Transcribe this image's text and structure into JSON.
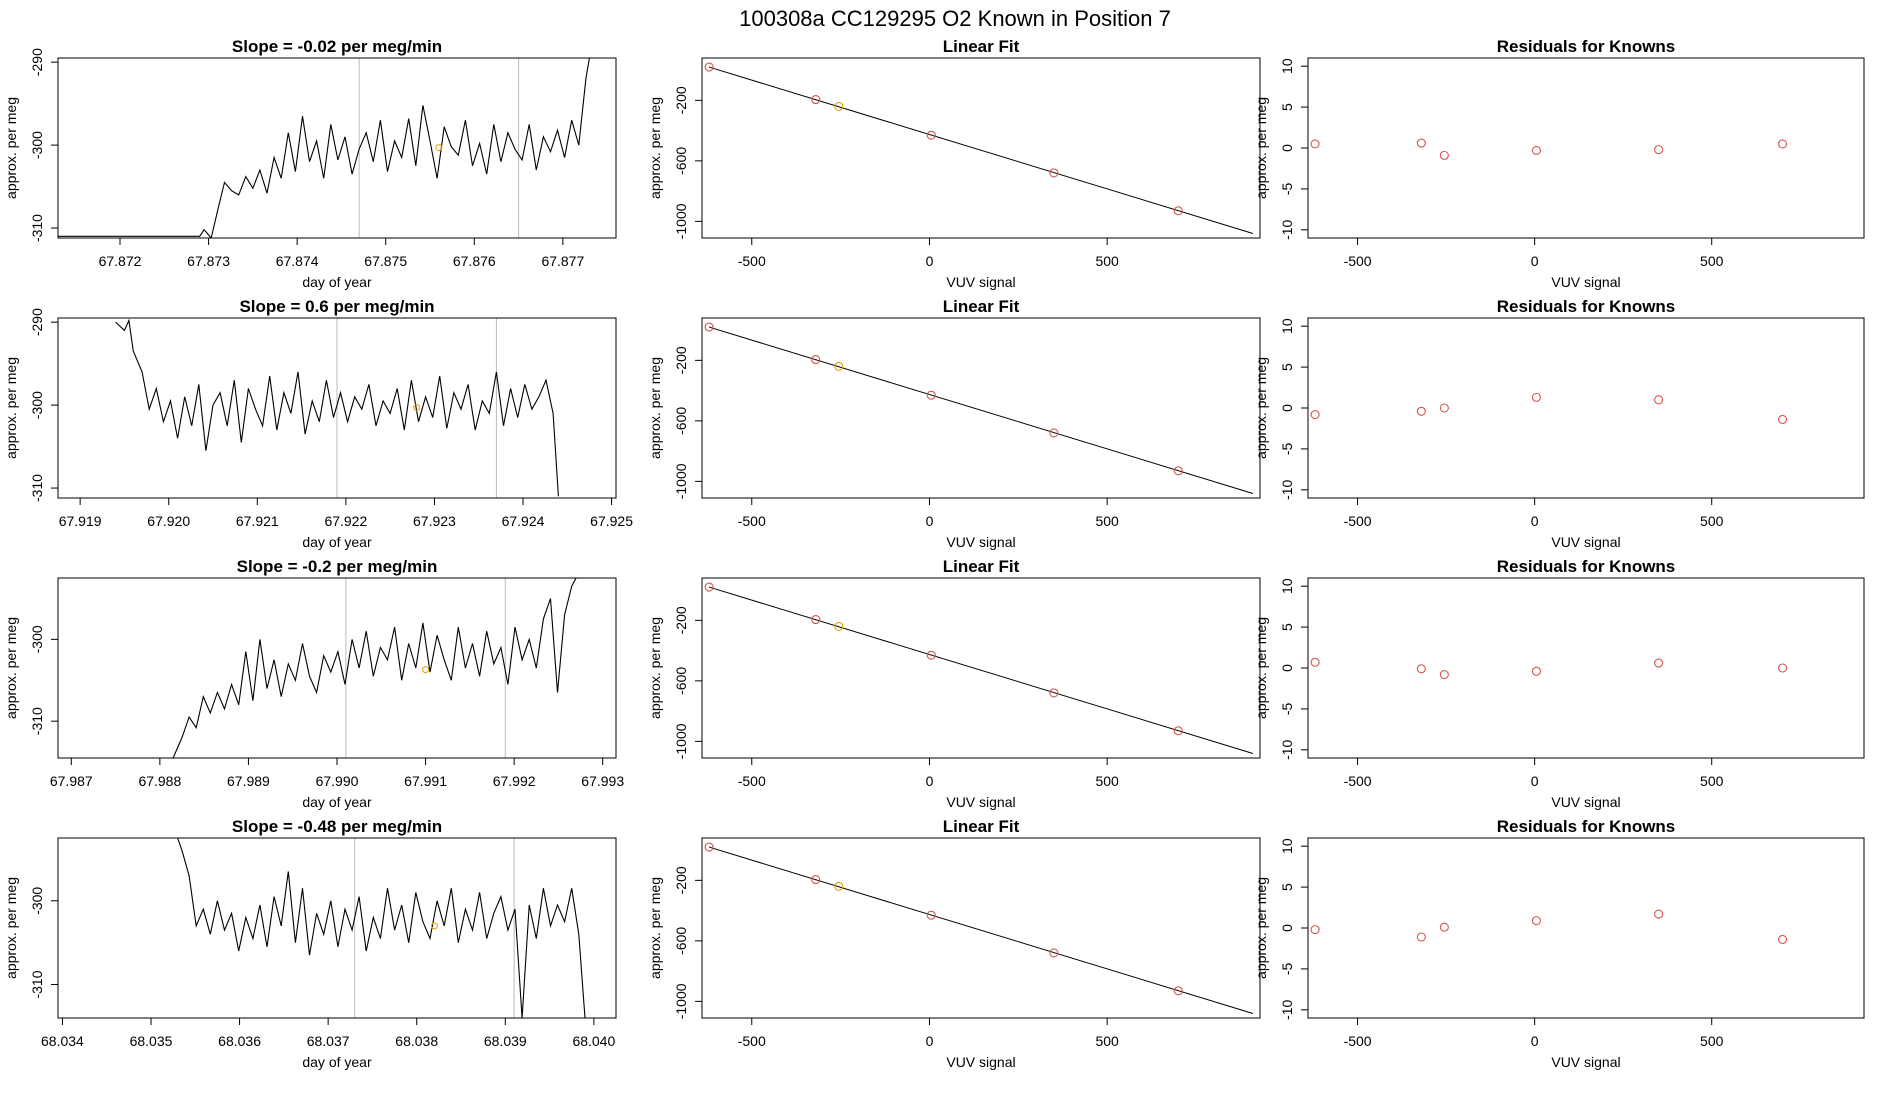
{
  "header": {
    "title": "100308a      CC129295   O2 Known in Position  7"
  },
  "colors": {
    "line": "#000000",
    "point": "#d9534f",
    "highlight": "#e69f00",
    "vline": "#bbbbbb",
    "frame": "#000000"
  },
  "chart_data": [
    {
      "type": "line",
      "panel": "timeseries-1",
      "title": "Slope =  -0.02  per meg/min",
      "xlabel": "day of year",
      "ylabel": "approx. per meg",
      "xlim": [
        67.8713,
        67.8776
      ],
      "ylim": [
        -311.2,
        -289.5
      ],
      "xticks": [
        67.872,
        67.873,
        67.874,
        67.875,
        67.876,
        67.877
      ],
      "xtick_labels": [
        "67.872",
        "67.873",
        "67.874",
        "67.875",
        "67.876",
        "67.877"
      ],
      "yticks": [
        -290,
        -300,
        -310
      ],
      "ytick_labels": [
        "-290",
        "-300",
        "-310"
      ],
      "vlines": [
        67.8747,
        67.8765
      ],
      "highlight": {
        "x": 67.8756,
        "y": -300.3
      },
      "x": [
        67.8713,
        67.8729,
        67.87295,
        67.87303,
        67.8731,
        67.87318,
        67.87326,
        67.87334,
        67.87342,
        67.8735,
        67.87358,
        67.87366,
        67.87374,
        67.87382,
        67.8739,
        67.87398,
        67.87406,
        67.87414,
        67.87422,
        67.8743,
        67.87438,
        67.87446,
        67.87454,
        67.87462,
        67.8747,
        67.87478,
        67.87486,
        67.87494,
        67.87502,
        67.8751,
        67.87518,
        67.87526,
        67.87534,
        67.87542,
        67.8755,
        67.87558,
        67.87566,
        67.87574,
        67.87582,
        67.8759,
        67.87598,
        67.87606,
        67.87614,
        67.87622,
        67.8763,
        67.87638,
        67.87646,
        67.87654,
        67.87662,
        67.8767,
        67.87678,
        67.87686,
        67.87694,
        67.87702,
        67.8771,
        67.87718,
        67.87726,
        67.8773
      ],
      "y": [
        -311.0,
        -311.0,
        -310.2,
        -311.2,
        -308.0,
        -304.5,
        -305.5,
        -306.0,
        -303.8,
        -305.2,
        -303.0,
        -305.8,
        -301.5,
        -304.0,
        -298.5,
        -303.2,
        -296.5,
        -302.0,
        -299.5,
        -304.0,
        -297.5,
        -301.8,
        -299.0,
        -303.5,
        -300.5,
        -298.5,
        -302.0,
        -297.0,
        -303.2,
        -299.5,
        -301.5,
        -296.8,
        -302.5,
        -295.2,
        -299.5,
        -304.0,
        -297.8,
        -300.2,
        -301.2,
        -297.0,
        -302.5,
        -299.8,
        -303.5,
        -297.5,
        -302.0,
        -298.5,
        -300.5,
        -301.8,
        -297.5,
        -303.0,
        -299.0,
        -300.8,
        -298.2,
        -301.5,
        -297.0,
        -300.0,
        -292.0,
        -289.5
      ]
    },
    {
      "type": "scatter",
      "panel": "linear-fit-1",
      "title": "Linear Fit",
      "xlabel": "VUV signal",
      "ylabel": "approx. per meg",
      "xlim": [
        -640,
        930
      ],
      "ylim": [
        -1110,
        80
      ],
      "xticks": [
        -500,
        0,
        500
      ],
      "xtick_labels": [
        "-500",
        "0",
        "500"
      ],
      "yticks": [
        -200,
        -600,
        -1000
      ],
      "ytick_labels": [
        "-200",
        "-600",
        "-1000"
      ],
      "fit_line": [
        [
          -620,
          20
        ],
        [
          910,
          -1080
        ]
      ],
      "x": [
        -620,
        -320,
        -255,
        5,
        350,
        700
      ],
      "y": [
        20,
        -195,
        -240,
        -430,
        -680,
        -930
      ],
      "highlight_index": 2
    },
    {
      "type": "scatter",
      "panel": "residuals-1",
      "title": "Residuals for Knowns",
      "xlabel": "VUV signal",
      "ylabel": "approx. per meg",
      "xlim": [
        -640,
        930
      ],
      "ylim": [
        -11,
        11
      ],
      "xticks": [
        -500,
        0,
        500
      ],
      "xtick_labels": [
        "-500",
        "0",
        "500"
      ],
      "yticks": [
        10,
        5,
        0,
        -5,
        -10
      ],
      "ytick_labels": [
        "10",
        "5",
        "0",
        "-5",
        "-10"
      ],
      "x": [
        -620,
        -320,
        -255,
        5,
        350,
        700
      ],
      "y": [
        0.5,
        0.6,
        -0.9,
        -0.3,
        -0.2,
        0.5
      ]
    },
    {
      "type": "line",
      "panel": "timeseries-2",
      "title": "Slope =  0.6  per meg/min",
      "xlabel": "day of year",
      "ylabel": "approx. per meg",
      "xlim": [
        67.91875,
        67.92505
      ],
      "ylim": [
        -311.2,
        -289.5
      ],
      "xticks": [
        67.919,
        67.92,
        67.921,
        67.922,
        67.923,
        67.924,
        67.925
      ],
      "xtick_labels": [
        "67.919",
        "67.920",
        "67.921",
        "67.922",
        "67.923",
        "67.924",
        "67.925"
      ],
      "yticks": [
        -290,
        -300,
        -310
      ],
      "ytick_labels": [
        "-290",
        "-300",
        "-310"
      ],
      "vlines": [
        67.9219,
        67.9237
      ],
      "highlight": {
        "x": 67.9228,
        "y": -300.3
      },
      "x": [
        67.9194,
        67.9195,
        67.91955,
        67.9196,
        67.9197,
        67.91978,
        67.91986,
        67.91994,
        67.92002,
        67.9201,
        67.92018,
        67.92026,
        67.92034,
        67.92042,
        67.9205,
        67.92058,
        67.92066,
        67.92074,
        67.92082,
        67.9209,
        67.92098,
        67.92106,
        67.92114,
        67.92122,
        67.9213,
        67.92138,
        67.92146,
        67.92154,
        67.92162,
        67.9217,
        67.92178,
        67.92186,
        67.92194,
        67.92202,
        67.9221,
        67.92218,
        67.92226,
        67.92234,
        67.92242,
        67.9225,
        67.92258,
        67.92266,
        67.92274,
        67.92282,
        67.9229,
        67.92298,
        67.92306,
        67.92314,
        67.92322,
        67.9233,
        67.92338,
        67.92346,
        67.92354,
        67.92362,
        67.9237,
        67.92378,
        67.92386,
        67.92394,
        67.92402,
        67.9241,
        67.92418,
        67.92426,
        67.92434,
        67.9244
      ],
      "y": [
        -290.0,
        -291.0,
        -289.8,
        -293.5,
        -296.0,
        -300.5,
        -298.0,
        -302.0,
        -299.5,
        -304.0,
        -299.0,
        -302.5,
        -297.5,
        -305.5,
        -300.0,
        -298.5,
        -302.5,
        -297.0,
        -304.5,
        -298.0,
        -300.5,
        -302.5,
        -296.5,
        -303.0,
        -298.5,
        -301.0,
        -296.0,
        -303.5,
        -299.5,
        -302.0,
        -297.0,
        -301.5,
        -298.5,
        -302.0,
        -299.0,
        -300.5,
        -297.5,
        -302.5,
        -299.5,
        -301.0,
        -298.0,
        -303.0,
        -297.0,
        -302.0,
        -299.0,
        -301.5,
        -296.5,
        -302.8,
        -298.5,
        -300.5,
        -297.5,
        -303.0,
        -299.5,
        -301.0,
        -296.0,
        -302.5,
        -298.0,
        -301.5,
        -297.5,
        -300.5,
        -299.0,
        -297.0,
        -301.0,
        -311.0
      ]
    },
    {
      "type": "scatter",
      "panel": "linear-fit-2",
      "title": "Linear Fit",
      "xlabel": "VUV signal",
      "ylabel": "approx. per meg",
      "xlim": [
        -640,
        930
      ],
      "ylim": [
        -1110,
        80
      ],
      "xticks": [
        -500,
        0,
        500
      ],
      "xtick_labels": [
        "-500",
        "0",
        "500"
      ],
      "yticks": [
        -200,
        -600,
        -1000
      ],
      "ytick_labels": [
        "-200",
        "-600",
        "-1000"
      ],
      "fit_line": [
        [
          -620,
          20
        ],
        [
          910,
          -1080
        ]
      ],
      "x": [
        -620,
        -320,
        -255,
        5,
        350,
        700
      ],
      "y": [
        20,
        -195,
        -240,
        -430,
        -680,
        -930
      ],
      "highlight_index": 2
    },
    {
      "type": "scatter",
      "panel": "residuals-2",
      "title": "Residuals for Knowns",
      "xlabel": "VUV signal",
      "ylabel": "approx. per meg",
      "xlim": [
        -640,
        930
      ],
      "ylim": [
        -11,
        11
      ],
      "xticks": [
        -500,
        0,
        500
      ],
      "xtick_labels": [
        "-500",
        "0",
        "500"
      ],
      "yticks": [
        10,
        5,
        0,
        -5,
        -10
      ],
      "ytick_labels": [
        "10",
        "5",
        "0",
        "-5",
        "-10"
      ],
      "x": [
        -620,
        -320,
        -255,
        5,
        350,
        700
      ],
      "y": [
        -0.8,
        -0.4,
        0.0,
        1.3,
        1.0,
        -1.4
      ]
    },
    {
      "type": "line",
      "panel": "timeseries-3",
      "title": "Slope =  -0.2  per meg/min",
      "xlabel": "day of year",
      "ylabel": "approx. per meg",
      "xlim": [
        67.98685,
        67.99315
      ],
      "ylim": [
        -314.5,
        -292.5
      ],
      "xticks": [
        67.987,
        67.988,
        67.989,
        67.99,
        67.991,
        67.992,
        67.993
      ],
      "xtick_labels": [
        "67.987",
        "67.988",
        "67.989",
        "67.990",
        "67.991",
        "67.992",
        "67.993"
      ],
      "yticks": [
        -300,
        -310
      ],
      "ytick_labels": [
        "-300",
        "-310"
      ],
      "vlines": [
        67.9901,
        67.9919
      ],
      "highlight": {
        "x": 67.991,
        "y": -303.7
      },
      "x": [
        67.98815,
        67.98825,
        67.98833,
        67.98841,
        67.98849,
        67.98857,
        67.98865,
        67.98873,
        67.98881,
        67.98889,
        67.98897,
        67.98905,
        67.98913,
        67.98921,
        67.98929,
        67.98937,
        67.98945,
        67.98953,
        67.98961,
        67.98969,
        67.98977,
        67.98985,
        67.98993,
        67.99001,
        67.99009,
        67.99017,
        67.99025,
        67.99033,
        67.99041,
        67.99049,
        67.99057,
        67.99065,
        67.99073,
        67.99081,
        67.99089,
        67.99097,
        67.99105,
        67.99113,
        67.99121,
        67.99129,
        67.99137,
        67.99145,
        67.99153,
        67.99161,
        67.99169,
        67.99177,
        67.99185,
        67.99193,
        67.99201,
        67.99209,
        67.99217,
        67.99225,
        67.99233,
        67.99241,
        67.99249,
        67.99257,
        67.99265,
        67.9927
      ],
      "y": [
        -314.5,
        -312.0,
        -309.5,
        -310.8,
        -307.0,
        -309.0,
        -306.5,
        -308.5,
        -305.5,
        -308.0,
        -301.5,
        -307.5,
        -300.0,
        -306.0,
        -302.5,
        -307.0,
        -303.0,
        -305.0,
        -300.5,
        -304.5,
        -306.5,
        -302.0,
        -304.0,
        -301.5,
        -305.5,
        -300.0,
        -303.5,
        -299.0,
        -304.5,
        -301.0,
        -302.5,
        -298.5,
        -305.0,
        -300.5,
        -303.5,
        -298.0,
        -304.0,
        -299.5,
        -302.5,
        -305.0,
        -298.5,
        -303.5,
        -300.5,
        -304.5,
        -299.0,
        -303.0,
        -301.0,
        -305.5,
        -298.5,
        -302.5,
        -300.0,
        -303.5,
        -297.5,
        -295.0,
        -306.5,
        -297.0,
        -293.5,
        -292.5
      ]
    },
    {
      "type": "scatter",
      "panel": "linear-fit-3",
      "title": "Linear Fit",
      "xlabel": "VUV signal",
      "ylabel": "approx. per meg",
      "xlim": [
        -640,
        930
      ],
      "ylim": [
        -1110,
        80
      ],
      "xticks": [
        -500,
        0,
        500
      ],
      "xtick_labels": [
        "-500",
        "0",
        "500"
      ],
      "yticks": [
        -200,
        -600,
        -1000
      ],
      "ytick_labels": [
        "-200",
        "-600",
        "-1000"
      ],
      "fit_line": [
        [
          -620,
          20
        ],
        [
          910,
          -1080
        ]
      ],
      "x": [
        -620,
        -320,
        -255,
        5,
        350,
        700
      ],
      "y": [
        20,
        -195,
        -240,
        -430,
        -680,
        -930
      ],
      "highlight_index": 2
    },
    {
      "type": "scatter",
      "panel": "residuals-3",
      "title": "Residuals for Knowns",
      "xlabel": "VUV signal",
      "ylabel": "approx. per meg",
      "xlim": [
        -640,
        930
      ],
      "ylim": [
        -11,
        11
      ],
      "xticks": [
        -500,
        0,
        500
      ],
      "xtick_labels": [
        "-500",
        "0",
        "500"
      ],
      "yticks": [
        10,
        5,
        0,
        -5,
        -10
      ],
      "ytick_labels": [
        "10",
        "5",
        "0",
        "-5",
        "-10"
      ],
      "x": [
        -620,
        -320,
        -255,
        5,
        350,
        700
      ],
      "y": [
        0.7,
        -0.1,
        -0.8,
        -0.4,
        0.6,
        0.0
      ]
    },
    {
      "type": "line",
      "panel": "timeseries-4",
      "title": "Slope =  -0.48  per meg/min",
      "xlabel": "day of year",
      "ylabel": "approx. per meg",
      "xlim": [
        68.03395,
        68.04025
      ],
      "ylim": [
        -314.0,
        -292.5
      ],
      "xticks": [
        68.034,
        68.035,
        68.036,
        68.037,
        68.038,
        68.039,
        68.04
      ],
      "xtick_labels": [
        "68.034",
        "68.035",
        "68.036",
        "68.037",
        "68.038",
        "68.039",
        "68.040"
      ],
      "yticks": [
        -300,
        -310
      ],
      "ytick_labels": [
        "-300",
        "-310"
      ],
      "vlines": [
        68.0373,
        68.0391
      ],
      "highlight": {
        "x": 68.0382,
        "y": -303.0
      },
      "x": [
        68.0353,
        68.03535,
        68.03543,
        68.03551,
        68.03559,
        68.03567,
        68.03575,
        68.03583,
        68.03591,
        68.03599,
        68.03607,
        68.03615,
        68.03623,
        68.03631,
        68.03639,
        68.03647,
        68.03655,
        68.03663,
        68.03671,
        68.03679,
        68.03687,
        68.03695,
        68.03703,
        68.03711,
        68.03719,
        68.03727,
        68.03735,
        68.03743,
        68.03751,
        68.03759,
        68.03767,
        68.03775,
        68.03783,
        68.03791,
        68.03799,
        68.03807,
        68.03815,
        68.03823,
        68.03831,
        68.03839,
        68.03847,
        68.03855,
        68.03863,
        68.03871,
        68.03879,
        68.03887,
        68.03895,
        68.03903,
        68.03911,
        68.03919,
        68.03927,
        68.03935,
        68.03943,
        68.03951,
        68.03959,
        68.03967,
        68.03975,
        68.03983,
        68.0399
      ],
      "y": [
        -292.5,
        -294.0,
        -297.0,
        -303.0,
        -301.0,
        -304.0,
        -300.0,
        -303.5,
        -301.5,
        -306.0,
        -302.0,
        -304.5,
        -300.5,
        -305.5,
        -299.5,
        -303.0,
        -296.5,
        -305.0,
        -298.5,
        -306.5,
        -301.5,
        -304.0,
        -300.0,
        -305.5,
        -301.0,
        -303.5,
        -299.5,
        -306.0,
        -302.0,
        -304.5,
        -298.5,
        -303.5,
        -300.5,
        -305.0,
        -299.0,
        -302.5,
        -304.5,
        -300.0,
        -303.0,
        -298.5,
        -305.0,
        -301.0,
        -303.5,
        -299.0,
        -304.5,
        -301.5,
        -299.5,
        -303.5,
        -301.0,
        -314.0,
        -300.5,
        -304.5,
        -298.5,
        -303.0,
        -300.5,
        -302.5,
        -298.5,
        -304.0,
        -314.0
      ]
    },
    {
      "type": "scatter",
      "panel": "linear-fit-4",
      "title": "Linear Fit",
      "xlabel": "VUV signal",
      "ylabel": "approx. per meg",
      "xlim": [
        -640,
        930
      ],
      "ylim": [
        -1110,
        80
      ],
      "xticks": [
        -500,
        0,
        500
      ],
      "xtick_labels": [
        "-500",
        "0",
        "500"
      ],
      "yticks": [
        -200,
        -600,
        -1000
      ],
      "ytick_labels": [
        "-200",
        "-600",
        "-1000"
      ],
      "fit_line": [
        [
          -620,
          20
        ],
        [
          910,
          -1080
        ]
      ],
      "x": [
        -620,
        -320,
        -255,
        5,
        350,
        700
      ],
      "y": [
        20,
        -195,
        -240,
        -430,
        -680,
        -930
      ],
      "highlight_index": 2
    },
    {
      "type": "scatter",
      "panel": "residuals-4",
      "title": "Residuals for Knowns",
      "xlabel": "VUV signal",
      "ylabel": "approx. per meg",
      "xlim": [
        -640,
        930
      ],
      "ylim": [
        -11,
        11
      ],
      "xticks": [
        -500,
        0,
        500
      ],
      "xtick_labels": [
        "-500",
        "0",
        "500"
      ],
      "yticks": [
        10,
        5,
        0,
        -5,
        -10
      ],
      "ytick_labels": [
        "10",
        "5",
        "0",
        "-5",
        "-10"
      ],
      "x": [
        -620,
        -320,
        -255,
        5,
        350,
        700
      ],
      "y": [
        -0.2,
        -1.1,
        0.1,
        0.9,
        1.7,
        -1.4
      ]
    }
  ]
}
